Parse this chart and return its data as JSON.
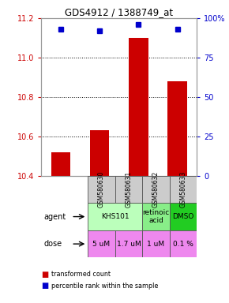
{
  "title": "GDS4912 / 1388749_at",
  "samples": [
    "GSM580630",
    "GSM580631",
    "GSM580632",
    "GSM580633"
  ],
  "bar_values": [
    10.52,
    10.63,
    11.1,
    10.88
  ],
  "percentile_values": [
    93,
    92,
    96,
    93
  ],
  "ylim_left": [
    10.4,
    11.2
  ],
  "ylim_right": [
    0,
    100
  ],
  "yticks_left": [
    10.4,
    10.6,
    10.8,
    11.0,
    11.2
  ],
  "yticks_right": [
    0,
    25,
    50,
    75,
    100
  ],
  "ytick_labels_right": [
    "0",
    "25",
    "50",
    "75",
    "100%"
  ],
  "bar_color": "#cc0000",
  "dot_color": "#0000cc",
  "agent_configs": [
    {
      "cols": [
        0,
        1
      ],
      "text": "KHS101",
      "color": "#bbffbb"
    },
    {
      "cols": [
        2
      ],
      "text": "retinoic\nacid",
      "color": "#88ee88"
    },
    {
      "cols": [
        3
      ],
      "text": "DMSO",
      "color": "#22cc22"
    }
  ],
  "dose_labels": [
    "5 uM",
    "1.7 uM",
    "1 uM",
    "0.1 %"
  ],
  "dose_color": "#ee88ee",
  "sample_bg_color": "#cccccc",
  "left_axis_color": "#cc0000",
  "right_axis_color": "#0000cc",
  "legend_items": [
    {
      "color": "#cc0000",
      "label": "transformed count"
    },
    {
      "color": "#0000cc",
      "label": "percentile rank within the sample"
    }
  ]
}
